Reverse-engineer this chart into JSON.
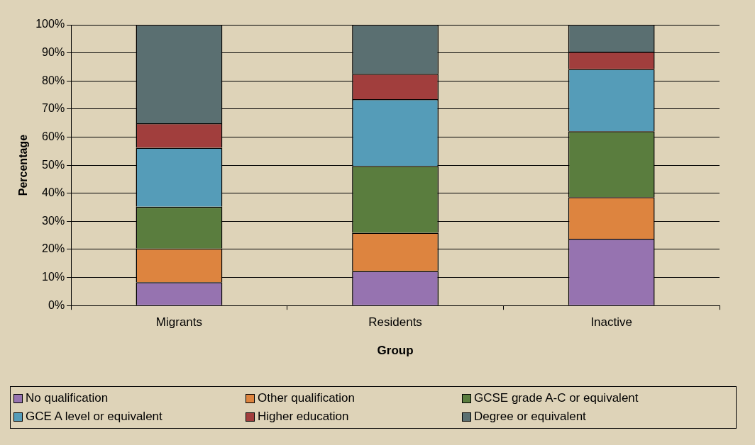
{
  "chart_data": {
    "type": "bar",
    "stacked": true,
    "xlabel": "Group",
    "ylabel": "Percentage",
    "categories": [
      "Migrants",
      "Residents",
      "Inactive"
    ],
    "series": [
      {
        "name": "No qualification",
        "color": "#9673b0",
        "values": [
          8.3,
          12.3,
          23.8
        ]
      },
      {
        "name": "Other qualification",
        "color": "#dd843f",
        "values": [
          12.0,
          13.6,
          14.8
        ]
      },
      {
        "name": "GCSE grade A-C or equivalent",
        "color": "#5a7d3e",
        "values": [
          14.9,
          23.8,
          23.5
        ]
      },
      {
        "name": "GCE A level or equivalent",
        "color": "#559cb8",
        "values": [
          21.0,
          23.8,
          22.1
        ]
      },
      {
        "name": "Higher education",
        "color": "#a13e3d",
        "values": [
          8.7,
          9.0,
          6.2
        ]
      },
      {
        "name": "Degree or equivalent",
        "color": "#5a6f71",
        "values": [
          35.1,
          17.5,
          9.6
        ]
      }
    ],
    "ylim": [
      0,
      100
    ],
    "yticks": [
      {
        "value": 0,
        "label": "0%"
      },
      {
        "value": 10,
        "label": "10%"
      },
      {
        "value": 20,
        "label": "20%"
      },
      {
        "value": 30,
        "label": "30%"
      },
      {
        "value": 40,
        "label": "40%"
      },
      {
        "value": 50,
        "label": "50%"
      },
      {
        "value": 60,
        "label": "60%"
      },
      {
        "value": 70,
        "label": "70%"
      },
      {
        "value": 80,
        "label": "80%"
      },
      {
        "value": 90,
        "label": "90%"
      },
      {
        "value": 100,
        "label": "100%"
      }
    ],
    "grid": "y",
    "legend": "bottom"
  }
}
